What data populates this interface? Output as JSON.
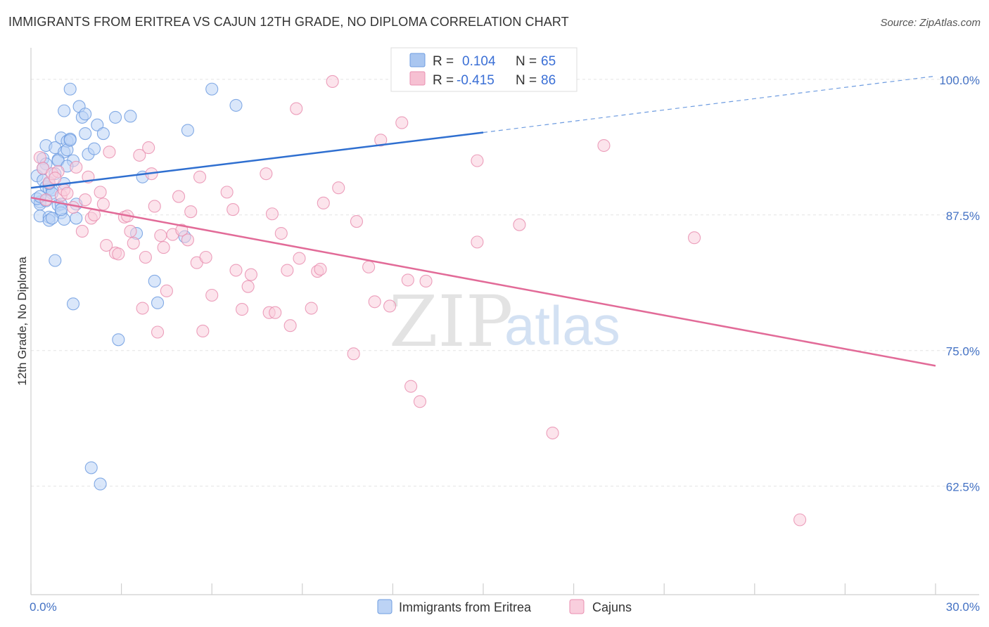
{
  "header": {
    "title": "IMMIGRANTS FROM ERITREA VS CAJUN 12TH GRADE, NO DIPLOMA CORRELATION CHART",
    "source": "Source: ZipAtlas.com"
  },
  "watermark": {
    "zip": "ZIP",
    "atlas": "atlas"
  },
  "legend_top": {
    "rows": [
      {
        "r_label": "R =",
        "r_value": "0.104",
        "n_label": "N =",
        "n_value": "65",
        "color": "#a9c6f0",
        "stroke": "#6e9ce0"
      },
      {
        "r_label": "R =",
        "r_value": "-0.415",
        "n_label": "N =",
        "n_value": "86",
        "color": "#f6c0d2",
        "stroke": "#e98fb0"
      }
    ]
  },
  "legend_bottom": {
    "items": [
      {
        "label": "Immigrants from Eritrea",
        "color": "#bcd3f5",
        "stroke": "#6e9ce0"
      },
      {
        "label": "Cajuns",
        "color": "#f9cedd",
        "stroke": "#e98fb0"
      }
    ]
  },
  "chart_data": {
    "type": "scatter",
    "title": "IMMIGRANTS FROM ERITREA VS CAJUN 12TH GRADE, NO DIPLOMA CORRELATION CHART",
    "xlabel": "",
    "ylabel": "12th Grade, No Diploma",
    "xlim": [
      0,
      30
    ],
    "ylim": [
      52.5,
      102
    ],
    "x_tick_labels": [
      "0.0%",
      "30.0%"
    ],
    "x_tick_values": [
      0,
      30
    ],
    "y_ticks": [
      {
        "value": 100,
        "label": "100.0%"
      },
      {
        "value": 87.5,
        "label": "87.5%"
      },
      {
        "value": 75,
        "label": "75.0%"
      },
      {
        "value": 62.5,
        "label": "62.5%"
      }
    ],
    "grid": true,
    "series": [
      {
        "name": "Immigrants from Eritrea",
        "color": "#6e9ce0",
        "fill": "#bcd3f5",
        "trend": {
          "x0": 0,
          "y0": 90.0,
          "x1": 15,
          "y1": 95.1,
          "x_dash_end": 30,
          "y_dash_end": 100.3
        },
        "points": [
          [
            0.2,
            91.1
          ],
          [
            0.3,
            88.7
          ],
          [
            0.3,
            88.5
          ],
          [
            0.3,
            87.4
          ],
          [
            0.4,
            92.7
          ],
          [
            0.4,
            90.7
          ],
          [
            0.5,
            93.9
          ],
          [
            0.5,
            92.2
          ],
          [
            0.5,
            90.1
          ],
          [
            0.6,
            89.9
          ],
          [
            0.6,
            87.3
          ],
          [
            0.6,
            87.0
          ],
          [
            0.7,
            89.8
          ],
          [
            0.7,
            89.5
          ],
          [
            0.8,
            93.7
          ],
          [
            0.8,
            91.3
          ],
          [
            0.9,
            92.6
          ],
          [
            0.9,
            88.4
          ],
          [
            1.0,
            94.6
          ],
          [
            1.0,
            88.5
          ],
          [
            1.0,
            87.7
          ],
          [
            1.1,
            97.1
          ],
          [
            1.1,
            93.3
          ],
          [
            1.1,
            87.1
          ],
          [
            1.2,
            94.3
          ],
          [
            1.2,
            93.5
          ],
          [
            1.3,
            94.5
          ],
          [
            1.3,
            94.4
          ],
          [
            1.4,
            92.5
          ],
          [
            1.5,
            88.5
          ],
          [
            1.5,
            87.2
          ],
          [
            1.6,
            97.5
          ],
          [
            1.7,
            96.5
          ],
          [
            1.8,
            96.8
          ],
          [
            1.8,
            95.0
          ],
          [
            1.9,
            93.1
          ],
          [
            2.0,
            64.2
          ],
          [
            2.1,
            93.6
          ],
          [
            2.2,
            95.8
          ],
          [
            2.3,
            62.7
          ],
          [
            2.4,
            95.0
          ],
          [
            2.8,
            96.5
          ],
          [
            2.9,
            76.0
          ],
          [
            3.3,
            96.6
          ],
          [
            3.5,
            85.8
          ],
          [
            3.7,
            91.0
          ],
          [
            4.1,
            81.4
          ],
          [
            4.2,
            79.4
          ],
          [
            5.1,
            85.5
          ],
          [
            5.2,
            95.3
          ],
          [
            6.0,
            99.1
          ],
          [
            6.8,
            97.6
          ],
          [
            0.8,
            83.3
          ],
          [
            1.4,
            79.3
          ],
          [
            1.3,
            99.1
          ],
          [
            0.4,
            91.8
          ],
          [
            0.2,
            89.0
          ],
          [
            0.9,
            92.5
          ],
          [
            1.1,
            90.4
          ],
          [
            0.5,
            88.8
          ],
          [
            0.6,
            90.4
          ],
          [
            1.0,
            88.0
          ],
          [
            0.3,
            89.2
          ],
          [
            1.2,
            92.0
          ],
          [
            0.7,
            87.2
          ]
        ]
      },
      {
        "name": "Cajuns",
        "color": "#e98fb0",
        "fill": "#f9cedd",
        "trend": {
          "x0": 0,
          "y0": 89.1,
          "x1": 30,
          "y1": 73.6
        },
        "points": [
          [
            0.3,
            92.8
          ],
          [
            0.4,
            91.8
          ],
          [
            0.6,
            90.5
          ],
          [
            0.7,
            91.3
          ],
          [
            0.9,
            91.5
          ],
          [
            1.0,
            89.3
          ],
          [
            1.1,
            89.8
          ],
          [
            1.2,
            89.5
          ],
          [
            1.4,
            88.2
          ],
          [
            1.5,
            91.9
          ],
          [
            1.7,
            86.0
          ],
          [
            1.8,
            88.9
          ],
          [
            1.9,
            91.0
          ],
          [
            2.0,
            87.2
          ],
          [
            2.1,
            87.5
          ],
          [
            2.3,
            89.6
          ],
          [
            2.4,
            88.5
          ],
          [
            2.5,
            84.7
          ],
          [
            2.6,
            93.3
          ],
          [
            2.8,
            84.0
          ],
          [
            2.9,
            83.9
          ],
          [
            3.1,
            87.3
          ],
          [
            3.2,
            87.4
          ],
          [
            3.3,
            86.0
          ],
          [
            3.4,
            84.9
          ],
          [
            3.6,
            93.0
          ],
          [
            3.7,
            78.9
          ],
          [
            3.8,
            83.6
          ],
          [
            3.9,
            93.7
          ],
          [
            4.0,
            91.3
          ],
          [
            4.1,
            88.3
          ],
          [
            4.2,
            76.7
          ],
          [
            4.3,
            85.6
          ],
          [
            4.4,
            84.5
          ],
          [
            4.5,
            80.5
          ],
          [
            4.7,
            85.7
          ],
          [
            4.9,
            89.2
          ],
          [
            5.0,
            86.1
          ],
          [
            5.2,
            85.2
          ],
          [
            5.3,
            87.8
          ],
          [
            5.5,
            83.1
          ],
          [
            5.6,
            91.0
          ],
          [
            5.7,
            76.8
          ],
          [
            5.8,
            83.6
          ],
          [
            6.0,
            80.1
          ],
          [
            6.5,
            89.6
          ],
          [
            6.7,
            88.0
          ],
          [
            6.8,
            82.4
          ],
          [
            7.0,
            78.8
          ],
          [
            7.2,
            80.9
          ],
          [
            7.3,
            82.0
          ],
          [
            7.8,
            91.3
          ],
          [
            7.9,
            78.5
          ],
          [
            8.0,
            87.6
          ],
          [
            8.1,
            78.5
          ],
          [
            8.3,
            85.8
          ],
          [
            8.5,
            82.4
          ],
          [
            8.6,
            77.3
          ],
          [
            8.8,
            97.3
          ],
          [
            8.9,
            83.5
          ],
          [
            9.3,
            78.9
          ],
          [
            9.5,
            82.3
          ],
          [
            9.6,
            82.5
          ],
          [
            9.7,
            88.6
          ],
          [
            10.0,
            99.8
          ],
          [
            10.2,
            90.0
          ],
          [
            10.7,
            74.7
          ],
          [
            10.8,
            86.9
          ],
          [
            11.2,
            82.7
          ],
          [
            11.4,
            79.5
          ],
          [
            11.6,
            94.4
          ],
          [
            11.9,
            79.1
          ],
          [
            12.3,
            96.0
          ],
          [
            12.5,
            81.5
          ],
          [
            12.6,
            71.7
          ],
          [
            12.9,
            70.3
          ],
          [
            13.1,
            81.4
          ],
          [
            14.8,
            85.0
          ],
          [
            14.8,
            92.5
          ],
          [
            16.2,
            86.6
          ],
          [
            17.3,
            67.4
          ],
          [
            19.0,
            93.9
          ],
          [
            22.0,
            85.4
          ],
          [
            25.5,
            59.4
          ],
          [
            0.5,
            88.9
          ],
          [
            0.8,
            90.9
          ]
        ]
      }
    ]
  }
}
